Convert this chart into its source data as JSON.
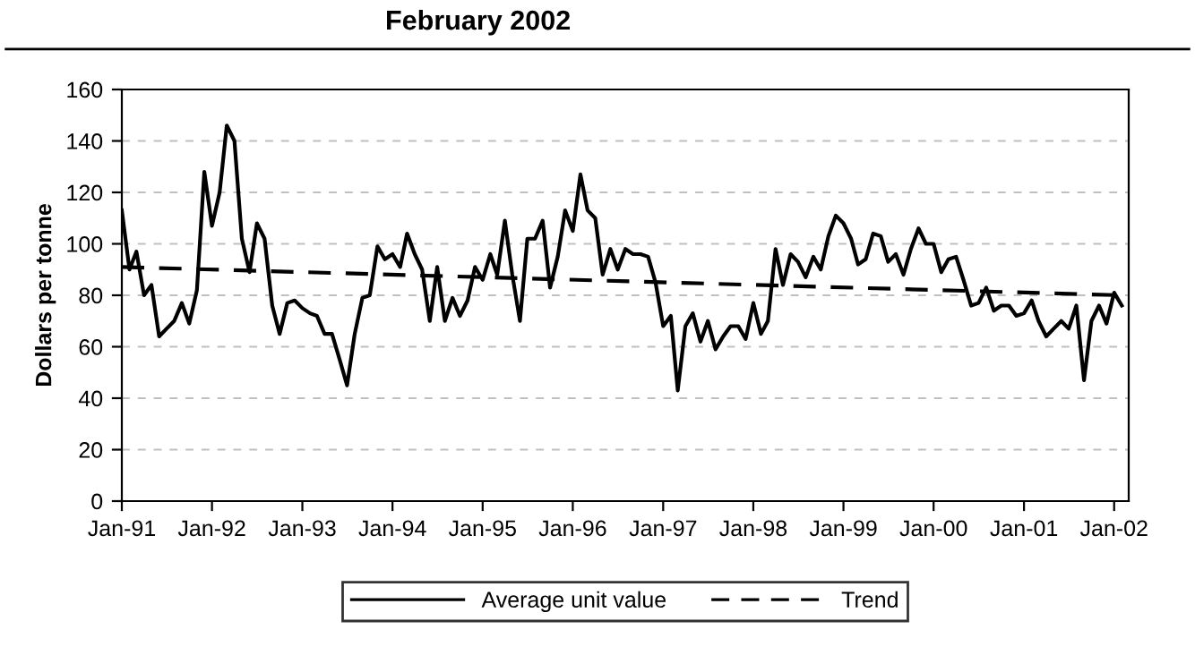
{
  "chart_data": {
    "type": "line",
    "title": "February 2002",
    "ylabel": "Dollars per tonne",
    "x": [
      "1991-01",
      "1991-02",
      "1991-03",
      "1991-04",
      "1991-05",
      "1991-06",
      "1991-07",
      "1991-08",
      "1991-09",
      "1991-10",
      "1991-11",
      "1991-12",
      "1992-01",
      "1992-02",
      "1992-03",
      "1992-04",
      "1992-05",
      "1992-06",
      "1992-07",
      "1992-08",
      "1992-09",
      "1992-10",
      "1992-11",
      "1992-12",
      "1993-01",
      "1993-02",
      "1993-03",
      "1993-04",
      "1993-05",
      "1993-06",
      "1993-07",
      "1993-08",
      "1993-09",
      "1993-10",
      "1993-11",
      "1993-12",
      "1994-01",
      "1994-02",
      "1994-03",
      "1994-04",
      "1994-05",
      "1994-06",
      "1994-07",
      "1994-08",
      "1994-09",
      "1994-10",
      "1994-11",
      "1994-12",
      "1995-01",
      "1995-02",
      "1995-03",
      "1995-04",
      "1995-05",
      "1995-06",
      "1995-07",
      "1995-08",
      "1995-09",
      "1995-10",
      "1995-11",
      "1995-12",
      "1996-01",
      "1996-02",
      "1996-03",
      "1996-04",
      "1996-05",
      "1996-06",
      "1996-07",
      "1996-08",
      "1996-09",
      "1996-10",
      "1996-11",
      "1996-12",
      "1997-01",
      "1997-02",
      "1997-03",
      "1997-04",
      "1997-05",
      "1997-06",
      "1997-07",
      "1997-08",
      "1997-09",
      "1997-10",
      "1997-11",
      "1997-12",
      "1998-01",
      "1998-02",
      "1998-03",
      "1998-04",
      "1998-05",
      "1998-06",
      "1998-07",
      "1998-08",
      "1998-09",
      "1998-10",
      "1998-11",
      "1998-12",
      "1999-01",
      "1999-02",
      "1999-03",
      "1999-04",
      "1999-05",
      "1999-06",
      "1999-07",
      "1999-08",
      "1999-09",
      "1999-10",
      "1999-11",
      "1999-12",
      "2000-01",
      "2000-02",
      "2000-03",
      "2000-04",
      "2000-05",
      "2000-06",
      "2000-07",
      "2000-08",
      "2000-09",
      "2000-10",
      "2000-11",
      "2000-12",
      "2001-01",
      "2001-02",
      "2001-03",
      "2001-04",
      "2001-05",
      "2001-06",
      "2001-07",
      "2001-08",
      "2001-09",
      "2001-10",
      "2001-11",
      "2001-12",
      "2002-01",
      "2002-02"
    ],
    "series": [
      {
        "name": "Average unit value",
        "color": "#000000",
        "line_style": "solid",
        "values": [
          113,
          90,
          97,
          80,
          84,
          64,
          67,
          70,
          77,
          69,
          82,
          128,
          107,
          120,
          146,
          140,
          102,
          89,
          108,
          102,
          76,
          65,
          77,
          78,
          75,
          73,
          72,
          65,
          65,
          55,
          45,
          65,
          79,
          80,
          99,
          94,
          96,
          91,
          104,
          96,
          90,
          70,
          91,
          70,
          79,
          72,
          78,
          91,
          86,
          96,
          88,
          109,
          88,
          70,
          102,
          102,
          109,
          83,
          95,
          113,
          105,
          127,
          113,
          110,
          88,
          98,
          90,
          98,
          96,
          96,
          95,
          85,
          68,
          72,
          43,
          68,
          73,
          62,
          70,
          59,
          64,
          68,
          68,
          63,
          77,
          65,
          70,
          98,
          84,
          96,
          93,
          87,
          95,
          90,
          103,
          111,
          108,
          102,
          92,
          94,
          104,
          103,
          93,
          96,
          88,
          98,
          106,
          100,
          100,
          89,
          94,
          95,
          86,
          76,
          77,
          83,
          74,
          76,
          76,
          72,
          73,
          78,
          70,
          64,
          67,
          70,
          67,
          76,
          47,
          70,
          76,
          69,
          81,
          76
        ]
      },
      {
        "name": "Trend",
        "color": "#000000",
        "line_style": "dashed",
        "x": [
          "1991-01",
          "2002-02"
        ],
        "values": [
          91,
          80
        ]
      }
    ],
    "xlim": [
      "1991-01",
      "2002-03"
    ],
    "xticks": [
      {
        "value": "1991-01",
        "label": "Jan-91"
      },
      {
        "value": "1992-01",
        "label": "Jan-92"
      },
      {
        "value": "1993-01",
        "label": "Jan-93"
      },
      {
        "value": "1994-01",
        "label": "Jan-94"
      },
      {
        "value": "1995-01",
        "label": "Jan-95"
      },
      {
        "value": "1996-01",
        "label": "Jan-96"
      },
      {
        "value": "1997-01",
        "label": "Jan-97"
      },
      {
        "value": "1998-01",
        "label": "Jan-98"
      },
      {
        "value": "1999-01",
        "label": "Jan-99"
      },
      {
        "value": "2000-01",
        "label": "Jan-00"
      },
      {
        "value": "2001-01",
        "label": "Jan-01"
      },
      {
        "value": "2002-01",
        "label": "Jan-02"
      }
    ],
    "ylim": [
      0,
      160
    ],
    "yticks": [
      0,
      20,
      40,
      60,
      80,
      100,
      120,
      140,
      160
    ],
    "grid": "y",
    "legend": "bottom",
    "marker": "none"
  }
}
